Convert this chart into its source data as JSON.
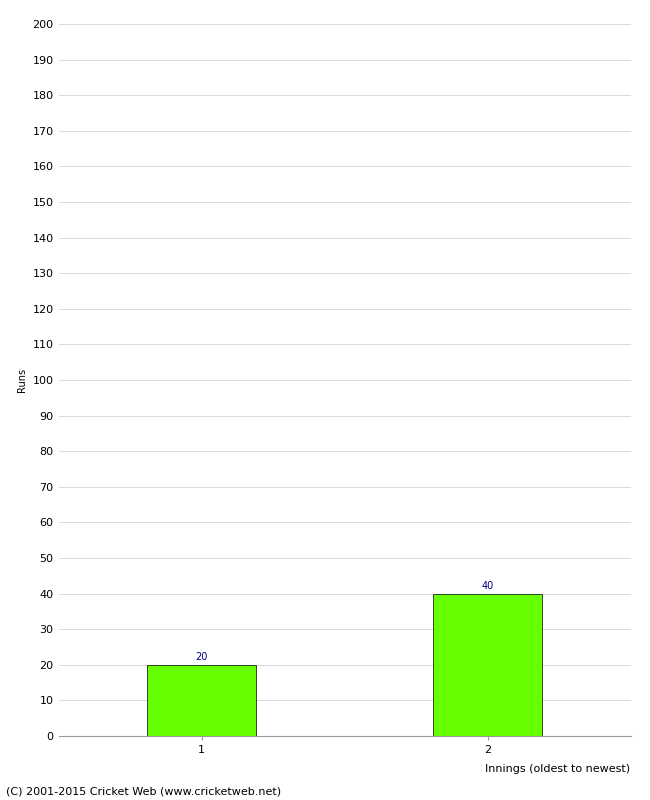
{
  "categories": [
    "1",
    "2"
  ],
  "values": [
    20,
    40
  ],
  "bar_color": "#66ff00",
  "bar_edgecolor": "#000000",
  "xlabel": "Innings (oldest to newest)",
  "ylabel": "Runs",
  "ylim": [
    0,
    200
  ],
  "ytick_interval": 10,
  "annotation_color": "#000080",
  "annotation_fontsize": 7,
  "xlabel_fontsize": 8,
  "ylabel_fontsize": 7,
  "tick_fontsize": 8,
  "grid_color": "#cccccc",
  "background_color": "#ffffff",
  "footer_text": "(C) 2001-2015 Cricket Web (www.cricketweb.net)",
  "footer_fontsize": 8,
  "footer_color": "#000000",
  "bar_width": 0.38,
  "xlim": [
    0,
    2
  ],
  "x_positions": [
    0.5,
    1.5
  ]
}
